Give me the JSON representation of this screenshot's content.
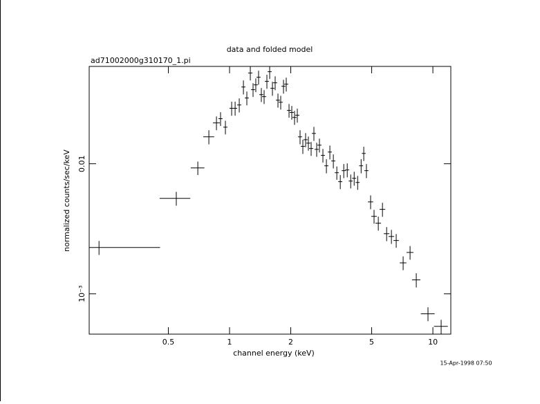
{
  "chart_data": {
    "type": "errorbar",
    "title": "data and folded model",
    "subtitle": "ad71002000g310170_1.pi",
    "x_label": "channel energy (keV)",
    "y_label": "normalized counts/sec/keV",
    "timestamp": "15-Apr-1998 07:50",
    "color": "#000000",
    "xscale": "log",
    "yscale": "log",
    "xlim": [
      0.204,
      12.25
    ],
    "ylim": [
      0.00049,
      0.056
    ],
    "xticks": [
      0.5,
      1,
      2,
      5,
      10
    ],
    "yticks": [
      0.01,
      {
        "value": 0.001,
        "label": "10⁻³"
      }
    ],
    "x": [
      0.228,
      0.547,
      0.698,
      0.791,
      0.862,
      0.903,
      0.954,
      1.024,
      1.065,
      1.116,
      1.17,
      1.216,
      1.265,
      1.305,
      1.346,
      1.389,
      1.433,
      1.479,
      1.526,
      1.575,
      1.625,
      1.676,
      1.73,
      1.785,
      1.842,
      1.9,
      1.961,
      2.023,
      2.087,
      2.154,
      2.222,
      2.293,
      2.366,
      2.441,
      2.519,
      2.599,
      2.682,
      2.767,
      2.878,
      2.994,
      3.114,
      3.239,
      3.369,
      3.504,
      3.645,
      3.791,
      3.943,
      4.101,
      4.266,
      4.437,
      4.571,
      4.711,
      4.939,
      5.137,
      5.389,
      5.65,
      5.923,
      6.253,
      6.601,
      7.14,
      7.723,
      8.285,
      9.46,
      10.98
    ],
    "xerr": [
      0.227,
      0.094,
      0.054,
      0.049,
      0.034,
      0.021,
      0.022,
      0.024,
      0.025,
      0.026,
      0.027,
      0.028,
      0.03,
      0.03,
      0.031,
      0.032,
      0.033,
      0.034,
      0.035,
      0.036,
      0.037,
      0.038,
      0.04,
      0.041,
      0.042,
      0.044,
      0.045,
      0.046,
      0.048,
      0.05,
      0.051,
      0.053,
      0.054,
      0.056,
      0.058,
      0.06,
      0.062,
      0.064,
      0.066,
      0.069,
      0.072,
      0.075,
      0.078,
      0.081,
      0.084,
      0.087,
      0.091,
      0.094,
      0.098,
      0.1,
      0.1,
      0.11,
      0.15,
      0.16,
      0.17,
      0.18,
      0.19,
      0.2,
      0.2,
      0.27,
      0.3,
      0.39,
      0.74,
      0.86
    ],
    "y": [
      0.00227,
      0.00542,
      0.00929,
      0.0161,
      0.0206,
      0.0222,
      0.0191,
      0.0267,
      0.0267,
      0.0283,
      0.0389,
      0.032,
      0.0498,
      0.0371,
      0.0404,
      0.0462,
      0.034,
      0.0328,
      0.043,
      0.051,
      0.038,
      0.0419,
      0.0308,
      0.0297,
      0.0394,
      0.0409,
      0.0257,
      0.0248,
      0.0227,
      0.0236,
      0.0161,
      0.0136,
      0.0153,
      0.0144,
      0.0131,
      0.0171,
      0.0129,
      0.0139,
      0.0116,
      0.00964,
      0.0123,
      0.0105,
      0.00853,
      0.00728,
      0.00885,
      0.00896,
      0.00736,
      0.00773,
      0.00718,
      0.00964,
      0.012,
      0.00885,
      0.00509,
      0.00394,
      0.00349,
      0.00446,
      0.0029,
      0.00276,
      0.00257,
      0.00173,
      0.00208,
      0.00128,
      0.000702,
      0.000562
    ],
    "yerr": [
      0.00028,
      0.00066,
      0.0011,
      0.002,
      0.0025,
      0.0027,
      0.0023,
      0.0033,
      0.0033,
      0.0035,
      0.0048,
      0.0039,
      0.0061,
      0.0045,
      0.0049,
      0.0057,
      0.0042,
      0.004,
      0.0053,
      0.0062,
      0.0047,
      0.0051,
      0.0038,
      0.0036,
      0.0048,
      0.005,
      0.0031,
      0.003,
      0.0028,
      0.0029,
      0.002,
      0.0017,
      0.0019,
      0.0018,
      0.0016,
      0.0021,
      0.0016,
      0.0017,
      0.0014,
      0.0012,
      0.0015,
      0.0013,
      0.001,
      0.0009,
      0.0011,
      0.0011,
      0.0009,
      0.00095,
      0.00088,
      0.0012,
      0.0015,
      0.0011,
      0.00062,
      0.00048,
      0.00043,
      0.00055,
      0.00036,
      0.00034,
      0.00031,
      0.00021,
      0.00025,
      0.00016,
      8.6e-05,
      6.9e-05
    ]
  }
}
